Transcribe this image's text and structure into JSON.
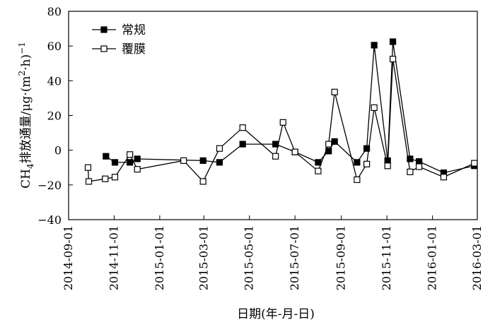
{
  "chart_data": {
    "type": "line",
    "xlabel": "日期(年-月-日)",
    "ylabel_main": "CH",
    "ylabel_sub": "4",
    "ylabel_rest": "排放通量/μg·(m",
    "ylabel_sup": "2",
    "ylabel_end": "·h)",
    "ylabel_sup2": "−1",
    "ylim": [
      -40,
      80
    ],
    "yticks": [
      -40,
      -20,
      0,
      20,
      40,
      60,
      80
    ],
    "ytick_labels": [
      "−40",
      "−20",
      "0",
      "20",
      "40",
      "60",
      "80"
    ],
    "xlim": [
      "2014-09-01",
      "2016-03-01"
    ],
    "xticks": [
      "2014-09-01",
      "2014-11-01",
      "2015-01-01",
      "2015-03-01",
      "2015-05-01",
      "2015-07-01",
      "2015-09-01",
      "2015-11-01",
      "2016-01-01",
      "2016-03-01"
    ],
    "grid": false,
    "legend_position": "top-left",
    "series": [
      {
        "name": "常规",
        "marker": "filled-square",
        "color": "#000000",
        "points": [
          {
            "x": "2014-10-21",
            "y": -3.5
          },
          {
            "x": "2014-11-02",
            "y": -7
          },
          {
            "x": "2014-11-22",
            "y": -7
          },
          {
            "x": "2014-12-02",
            "y": -5
          },
          {
            "x": "2015-02-28",
            "y": -6
          },
          {
            "x": "2015-03-22",
            "y": -7
          },
          {
            "x": "2015-04-22",
            "y": 3.5
          },
          {
            "x": "2015-06-05",
            "y": 3.5
          },
          {
            "x": "2015-07-01",
            "y": -1
          },
          {
            "x": "2015-08-01",
            "y": -7
          },
          {
            "x": "2015-08-15",
            "y": -0.5
          },
          {
            "x": "2015-08-23",
            "y": 5
          },
          {
            "x": "2015-09-22",
            "y": -7
          },
          {
            "x": "2015-10-05",
            "y": 1
          },
          {
            "x": "2015-10-15",
            "y": 60.5
          },
          {
            "x": "2015-11-02",
            "y": -6
          },
          {
            "x": "2015-11-09",
            "y": 62.5
          },
          {
            "x": "2015-12-02",
            "y": -5
          },
          {
            "x": "2015-12-14",
            "y": -6.5
          },
          {
            "x": "2016-01-16",
            "y": -13
          },
          {
            "x": "2016-02-26",
            "y": -9
          }
        ]
      },
      {
        "name": "覆膜",
        "marker": "open-square",
        "color": "#000000",
        "points": [
          {
            "x": "2014-09-27",
            "y": -10
          },
          {
            "x": "2014-09-28",
            "y": -18
          },
          {
            "x": "2014-10-20",
            "y": -16.5
          },
          {
            "x": "2014-11-02",
            "y": -15.5
          },
          {
            "x": "2014-11-22",
            "y": -2.5
          },
          {
            "x": "2014-12-02",
            "y": -11
          },
          {
            "x": "2015-02-02",
            "y": -6
          },
          {
            "x": "2015-02-28",
            "y": -18
          },
          {
            "x": "2015-03-22",
            "y": 1
          },
          {
            "x": "2015-04-22",
            "y": 13
          },
          {
            "x": "2015-06-05",
            "y": -3.5
          },
          {
            "x": "2015-06-15",
            "y": 16
          },
          {
            "x": "2015-07-01",
            "y": -1
          },
          {
            "x": "2015-08-01",
            "y": -12
          },
          {
            "x": "2015-08-15",
            "y": 3.5
          },
          {
            "x": "2015-08-23",
            "y": 33.5
          },
          {
            "x": "2015-09-22",
            "y": -17
          },
          {
            "x": "2015-10-05",
            "y": -8
          },
          {
            "x": "2015-10-15",
            "y": 24.5
          },
          {
            "x": "2015-11-02",
            "y": -9
          },
          {
            "x": "2015-11-09",
            "y": 52.5
          },
          {
            "x": "2015-12-02",
            "y": -12.5
          },
          {
            "x": "2015-12-14",
            "y": -9.5
          },
          {
            "x": "2016-01-16",
            "y": -15.5
          },
          {
            "x": "2016-02-26",
            "y": -7.5
          }
        ]
      }
    ]
  }
}
